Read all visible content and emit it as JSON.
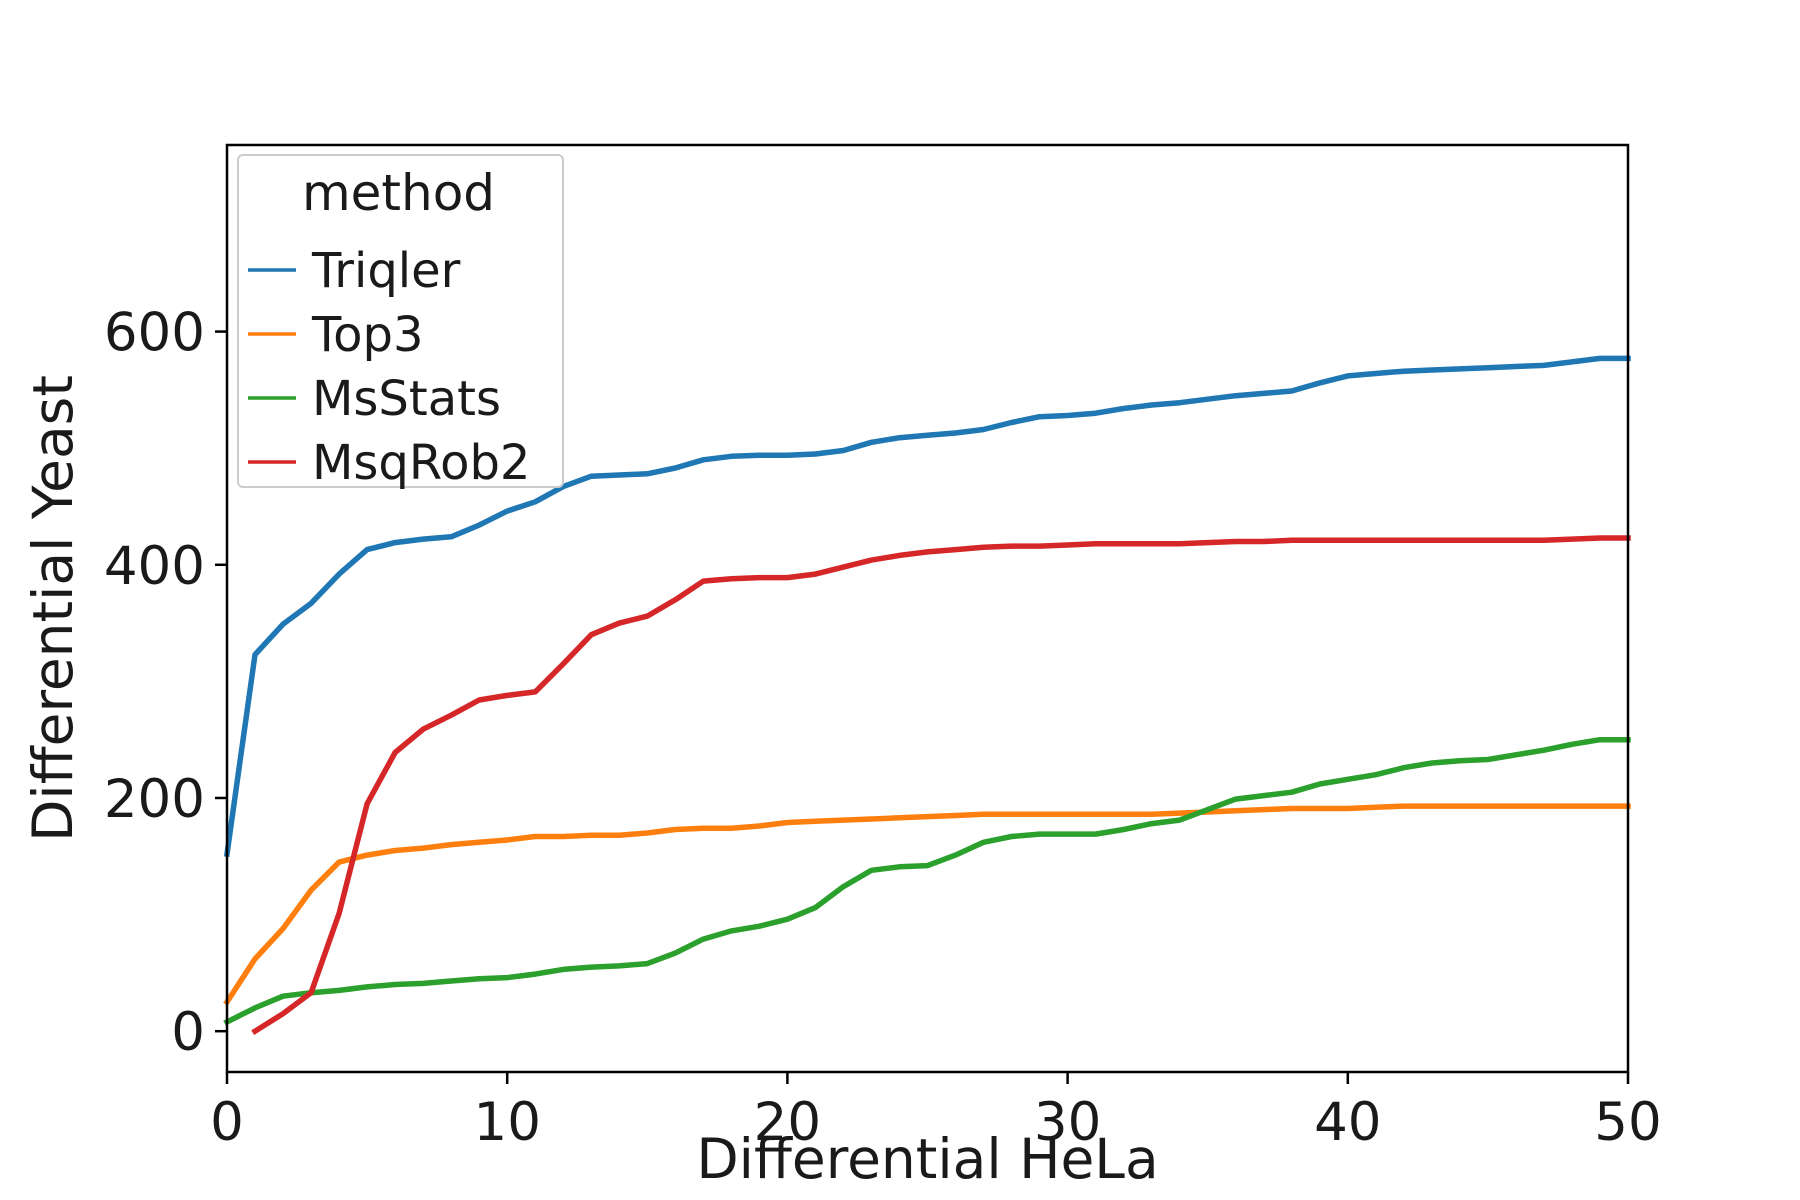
{
  "chart_data": {
    "type": "line",
    "title": "",
    "xlabel": "Differential HeLa",
    "ylabel": "Differential Yeast",
    "xlim": [
      0,
      50
    ],
    "ylim": [
      -35,
      760
    ],
    "x_ticks": [
      "0",
      "10",
      "20",
      "30",
      "40",
      "50"
    ],
    "y_ticks": [
      "0",
      "200",
      "400",
      "600"
    ],
    "grid": false,
    "legend": {
      "title": "method",
      "position": "top-left"
    },
    "series": [
      {
        "name": "Triqler",
        "color": "#1f77b4",
        "x": [
          0,
          1,
          2,
          3,
          4,
          5,
          6,
          7,
          8,
          9,
          10,
          11,
          12,
          13,
          14,
          15,
          16,
          17,
          18,
          19,
          20,
          21,
          22,
          23,
          24,
          25,
          26,
          27,
          28,
          29,
          30,
          31,
          32,
          33,
          34,
          35,
          36,
          37,
          38,
          39,
          40,
          41,
          42,
          43,
          44,
          45,
          46,
          47,
          48,
          49,
          50
        ],
        "y": [
          152,
          323,
          349,
          367,
          392,
          413,
          419,
          422,
          424,
          434,
          446,
          454,
          467,
          476,
          477,
          478,
          483,
          490,
          493,
          494,
          494,
          495,
          498,
          505,
          509,
          511,
          513,
          516,
          522,
          527,
          528,
          530,
          534,
          537,
          539,
          542,
          545,
          547,
          549,
          556,
          562,
          564,
          566,
          567,
          568,
          569,
          570,
          571,
          574,
          577,
          577
        ]
      },
      {
        "name": "Top3",
        "color": "#ff7f0e",
        "x": [
          0,
          1,
          2,
          3,
          4,
          5,
          6,
          7,
          8,
          9,
          10,
          11,
          12,
          13,
          14,
          15,
          16,
          17,
          18,
          19,
          20,
          21,
          22,
          23,
          24,
          25,
          26,
          27,
          28,
          29,
          30,
          31,
          32,
          33,
          34,
          35,
          36,
          37,
          38,
          39,
          40,
          41,
          42,
          43,
          44,
          45,
          46,
          47,
          48,
          49,
          50
        ],
        "y": [
          25,
          62,
          88,
          121,
          145,
          151,
          155,
          157,
          160,
          162,
          164,
          167,
          167,
          168,
          168,
          170,
          173,
          174,
          174,
          176,
          179,
          180,
          181,
          182,
          183,
          184,
          185,
          186,
          186,
          186,
          186,
          186,
          186,
          186,
          187,
          188,
          189,
          190,
          191,
          191,
          191,
          192,
          193,
          193,
          193,
          193,
          193,
          193,
          193,
          193,
          193
        ]
      },
      {
        "name": "MsStats",
        "color": "#2ca02c",
        "x": [
          0,
          1,
          2,
          3,
          4,
          5,
          6,
          7,
          8,
          9,
          10,
          11,
          12,
          13,
          14,
          15,
          16,
          17,
          18,
          19,
          20,
          21,
          22,
          23,
          24,
          25,
          26,
          27,
          28,
          29,
          30,
          31,
          32,
          33,
          34,
          35,
          36,
          37,
          38,
          39,
          40,
          41,
          42,
          43,
          44,
          45,
          46,
          47,
          48,
          49,
          50
        ],
        "y": [
          8,
          20,
          30,
          33,
          35,
          38,
          40,
          41,
          43,
          45,
          46,
          49,
          53,
          55,
          56,
          58,
          67,
          79,
          86,
          90,
          96,
          106,
          124,
          138,
          141,
          142,
          151,
          162,
          167,
          169,
          169,
          169,
          173,
          178,
          181,
          190,
          199,
          202,
          205,
          212,
          216,
          220,
          226,
          230,
          232,
          233,
          237,
          241,
          246,
          250,
          250
        ]
      },
      {
        "name": "MsqRob2",
        "color": "#d62728",
        "x": [
          1,
          2,
          3,
          4,
          5,
          6,
          7,
          8,
          9,
          10,
          11,
          12,
          13,
          14,
          15,
          16,
          17,
          18,
          19,
          20,
          21,
          22,
          23,
          24,
          25,
          26,
          27,
          28,
          29,
          30,
          31,
          32,
          33,
          34,
          35,
          36,
          37,
          38,
          39,
          40,
          41,
          42,
          43,
          44,
          45,
          46,
          47,
          48,
          49,
          50
        ],
        "y": [
          0,
          15,
          33,
          101,
          195,
          239,
          259,
          271,
          284,
          288,
          291,
          315,
          340,
          350,
          356,
          370,
          386,
          388,
          389,
          389,
          392,
          398,
          404,
          408,
          411,
          413,
          415,
          416,
          416,
          417,
          418,
          418,
          418,
          418,
          419,
          420,
          420,
          421,
          421,
          421,
          421,
          421,
          421,
          421,
          421,
          421,
          421,
          422,
          423,
          423
        ]
      }
    ]
  }
}
